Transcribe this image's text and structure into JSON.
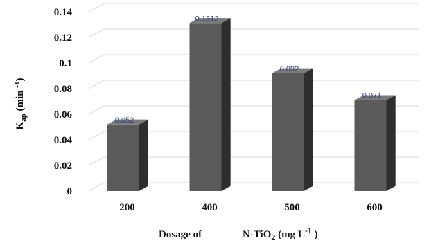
{
  "chart_data": {
    "type": "bar",
    "style": "3d-column",
    "categories": [
      "200",
      "400",
      "500",
      "600"
    ],
    "values": [
      0.052,
      0.1312,
      0.092,
      0.071
    ],
    "data_labels": [
      "0.052",
      "0.1312",
      "0.092",
      "0.071"
    ],
    "y_ticks": [
      "0",
      "0.02",
      "0.04",
      "0.06",
      "0.08",
      "0.1",
      "0.12",
      "0.14"
    ],
    "ylim": [
      0,
      0.14
    ],
    "ylabel": {
      "main": "K",
      "sub": "ap",
      "rest": " (min ",
      "sup": "-1",
      "end": ")"
    },
    "xlabel": {
      "a": "Dosage of",
      "b": "N-TiO",
      "sub": "2",
      "c": " (mg L",
      "sup": "-1",
      "d": " )"
    },
    "grid": true,
    "colors": {
      "front": "#5a5a5a",
      "side": "#2e2e2e",
      "top": "#7a7a7a",
      "label": "#2a3f7a"
    }
  }
}
